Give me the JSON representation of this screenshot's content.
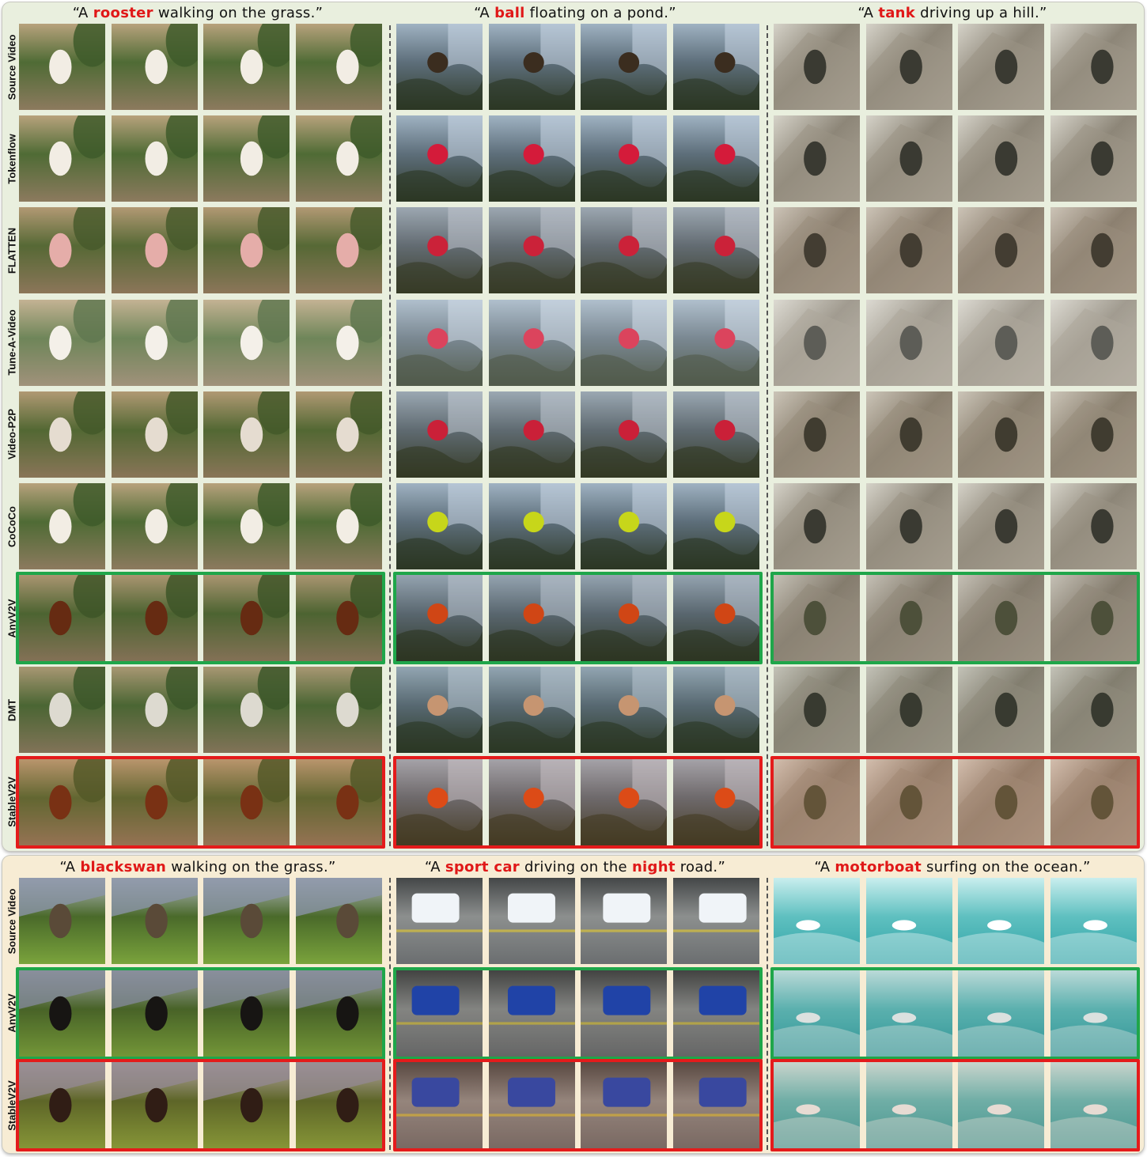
{
  "figure": {
    "top_section": {
      "row_labels": [
        "Source Video",
        "Tokenflow",
        "FLATTEN",
        "Tune-A-Video",
        "Video-P2P",
        "CoCoCo",
        "AnyV2V",
        "DMT",
        "StableV2V"
      ],
      "highlighted_rows": {
        "AnyV2V": "green",
        "StableV2V": "red"
      },
      "columns": [
        {
          "caption": {
            "pre": "“A ",
            "keyword": "rooster",
            "mid": " walking on the grass.”",
            "keyword2": "",
            "post": ""
          },
          "scene": "rooster on grass"
        },
        {
          "caption": {
            "pre": "“A ",
            "keyword": "ball",
            "mid": " floating on a pond.”",
            "keyword2": "",
            "post": ""
          },
          "scene": "duck on pond"
        },
        {
          "caption": {
            "pre": "“A ",
            "keyword": "tank",
            "mid": " driving up a hill.”",
            "keyword2": "",
            "post": ""
          },
          "scene": "hiker on rocky hill"
        }
      ]
    },
    "bottom_section": {
      "row_labels": [
        "Source Video",
        "AnyV2V",
        "StableV2V"
      ],
      "highlighted_rows": {
        "AnyV2V": "green",
        "StableV2V": "red"
      },
      "columns": [
        {
          "caption": {
            "pre": "“A ",
            "keyword": "blackswan",
            "mid": " walking on the grass.”",
            "keyword2": "",
            "post": ""
          },
          "scene": "bird on grass slope"
        },
        {
          "caption": {
            "pre": "“A ",
            "keyword": "sport car",
            "mid": " driving on the ",
            "keyword2": "night",
            "post": " road.”"
          },
          "scene": "bus on street"
        },
        {
          "caption": {
            "pre": "“A ",
            "keyword": "motorboat",
            "mid": " surfing on the ocean.”",
            "keyword2": "",
            "post": ""
          },
          "scene": "surfer on ocean"
        }
      ]
    },
    "colors": {
      "top_panel_bg": "#e9efde",
      "bottom_panel_bg": "#f7ecd4",
      "keyword": "#e01818",
      "highlight_green": "#1fa64a",
      "highlight_red": "#e41b1b"
    }
  }
}
